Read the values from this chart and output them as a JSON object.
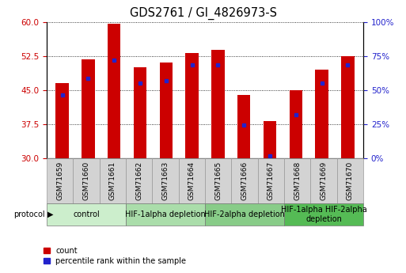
{
  "title": "GDS2761 / GI_4826973-S",
  "samples": [
    "GSM71659",
    "GSM71660",
    "GSM71661",
    "GSM71662",
    "GSM71663",
    "GSM71664",
    "GSM71665",
    "GSM71666",
    "GSM71667",
    "GSM71668",
    "GSM71669",
    "GSM71670"
  ],
  "bar_heights": [
    46.5,
    51.8,
    59.5,
    50.0,
    51.0,
    53.2,
    53.8,
    44.0,
    38.2,
    45.0,
    49.5,
    52.5
  ],
  "bar_bottom": 30,
  "blue_marker_values": [
    44.0,
    47.5,
    51.5,
    46.5,
    47.0,
    50.5,
    50.5,
    37.3,
    30.5,
    39.5,
    46.5,
    50.5
  ],
  "bar_color": "#cc0000",
  "blue_color": "#2222cc",
  "ylim_left": [
    30,
    60
  ],
  "ylim_right": [
    0,
    100
  ],
  "yticks_left": [
    30,
    37.5,
    45,
    52.5,
    60
  ],
  "yticks_right": [
    0,
    25,
    50,
    75,
    100
  ],
  "ytick_labels_right": [
    "0%",
    "25%",
    "50%",
    "75%",
    "100%"
  ],
  "groups": [
    {
      "label": "control",
      "start": 0,
      "end": 3,
      "color": "#cceecc"
    },
    {
      "label": "HIF-1alpha depletion",
      "start": 3,
      "end": 6,
      "color": "#aaddaa"
    },
    {
      "label": "HIF-2alpha depletion",
      "start": 6,
      "end": 9,
      "color": "#88cc88"
    },
    {
      "label": "HIF-1alpha HIF-2alpha\ndepletion",
      "start": 9,
      "end": 12,
      "color": "#55bb55"
    }
  ],
  "legend_count_label": "count",
  "legend_pct_label": "percentile rank within the sample",
  "bar_width": 0.5,
  "xlabel_fontsize": 6.5,
  "ylabel_left_color": "#cc0000",
  "ylabel_right_color": "#2222cc",
  "title_fontsize": 10.5,
  "tick_fontsize": 7.5,
  "group_fontsize": 7
}
